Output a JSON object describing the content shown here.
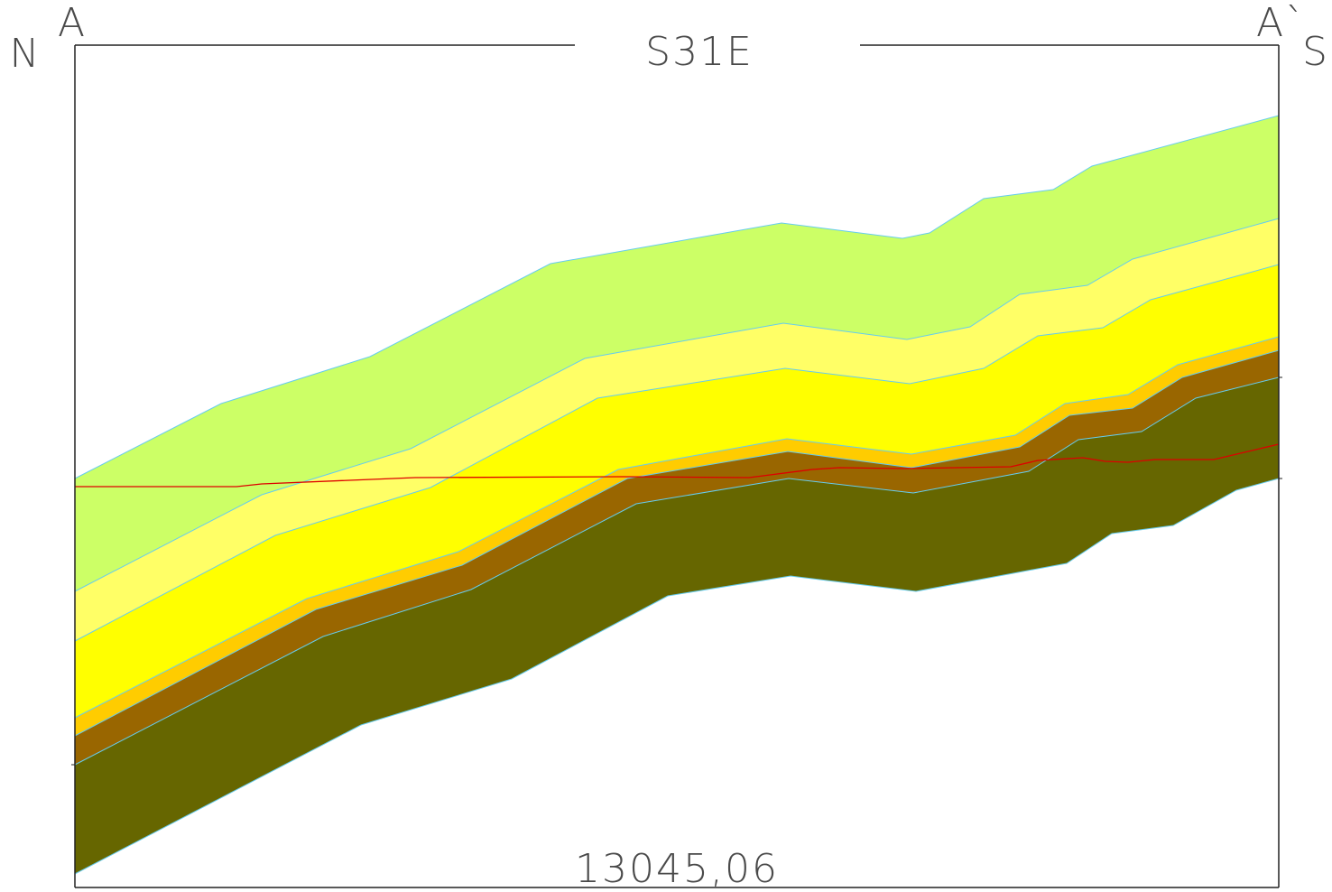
{
  "labels": {
    "start": "A",
    "start_direction": "N",
    "bearing": "S31E",
    "end": "A`",
    "end_direction": "S",
    "length": "13045,06"
  }
}
